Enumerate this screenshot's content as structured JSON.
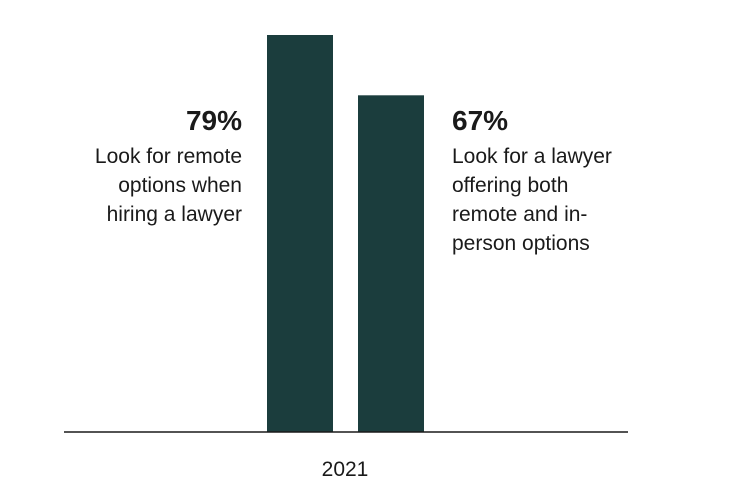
{
  "chart_data": {
    "type": "bar",
    "categories": [
      "2021"
    ],
    "series": [
      {
        "name": "Look for remote options when hiring a lawyer",
        "color": "#1b3d3d",
        "values": [
          79
        ],
        "value_labels": [
          "79%"
        ]
      },
      {
        "name": "Look for a lawyer offering both remote and in-person options",
        "color": "#1b3d3d",
        "values": [
          67
        ],
        "value_labels": [
          "67%"
        ]
      }
    ]
  }
}
